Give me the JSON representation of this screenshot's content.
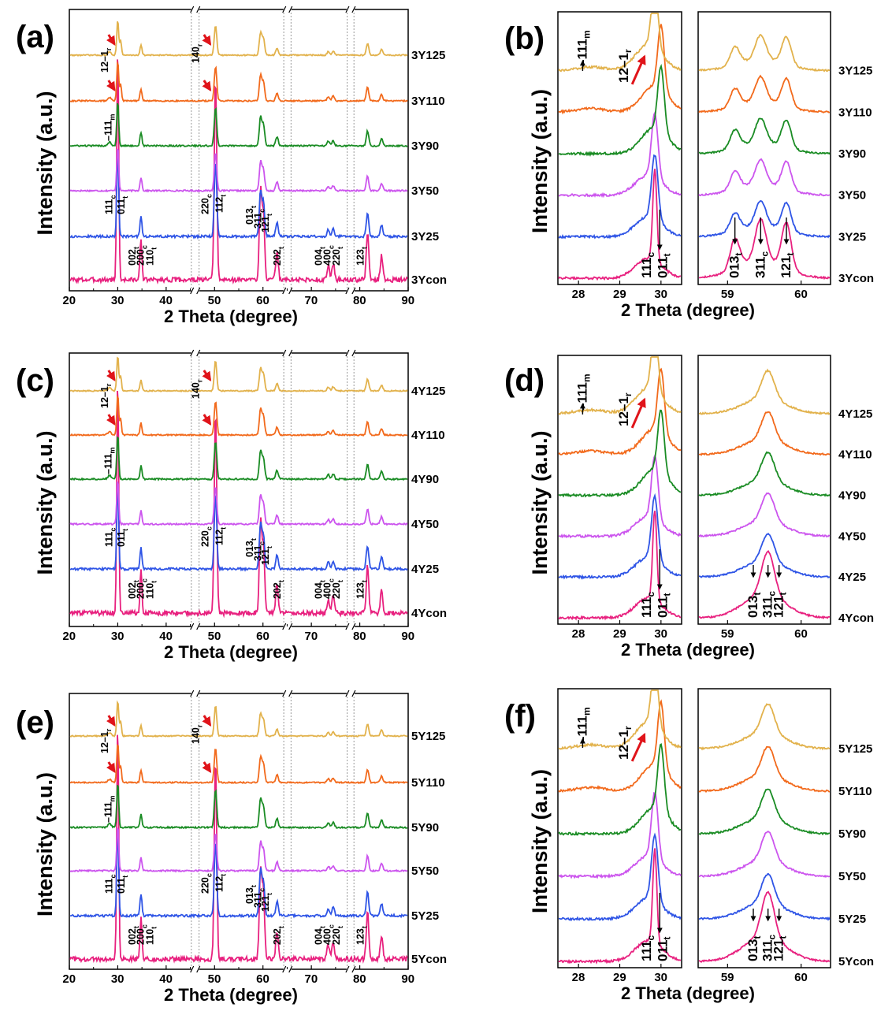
{
  "chart_data": [
    {
      "panel": "(a)",
      "type": "line",
      "series_type": "xrd-stacked",
      "xlabel": "2 Theta (degree)",
      "ylabel": "Intensity (a.u.)",
      "xlim": [
        20,
        90
      ],
      "xticks": [
        "20",
        "30",
        "40",
        "50",
        "60",
        "70",
        "80",
        "90"
      ],
      "axis_breaks": [
        [
          45,
          47
        ],
        [
          64,
          66
        ],
        [
          77,
          79
        ]
      ],
      "series": [
        "3Ycon",
        "3Y25",
        "3Y50",
        "3Y90",
        "3Y110",
        "3Y125"
      ],
      "colors": [
        "#e8217f",
        "#2f55e6",
        "#cc55ee",
        "#1a8c24",
        "#f26a1c",
        "#e2b24c"
      ],
      "peaks": [
        {
          "x": 30.0,
          "h": 1.0
        },
        {
          "x": 34.8,
          "h": 0.18
        },
        {
          "x": 50.2,
          "h": 0.85
        },
        {
          "x": 59.5,
          "h": 0.38
        },
        {
          "x": 60.1,
          "h": 0.28
        },
        {
          "x": 62.9,
          "h": 0.12
        },
        {
          "x": 73.5,
          "h": 0.06
        },
        {
          "x": 74.5,
          "h": 0.07
        },
        {
          "x": 81.6,
          "h": 0.2
        },
        {
          "x": 84.5,
          "h": 0.1
        }
      ],
      "annotations": [
        {
          "text": "111",
          "sub": "c"
        },
        {
          "text": "011",
          "sub": "t"
        },
        {
          "text": "002",
          "sub": "t"
        },
        {
          "text": "200",
          "sub": "c"
        },
        {
          "text": "110",
          "sub": "t"
        },
        {
          "text": "220",
          "sub": "c"
        },
        {
          "text": "112",
          "sub": "t"
        },
        {
          "text": "013",
          "sub": "t"
        },
        {
          "text": "311",
          "sub": "c"
        },
        {
          "text": "121",
          "sub": "t"
        },
        {
          "text": "202",
          "sub": "t"
        },
        {
          "text": "004",
          "sub": "t"
        },
        {
          "text": "400",
          "sub": "c"
        },
        {
          "text": "220",
          "sub": "t"
        },
        {
          "text": "123",
          "sub": "t"
        },
        {
          "text": "–111",
          "sub": "m"
        },
        {
          "text": "12–1",
          "sub": "r"
        },
        {
          "text": "140",
          "sub": "r"
        }
      ]
    },
    {
      "panel": "(b)",
      "type": "line",
      "series_type": "xrd-stacked-zoom",
      "xlabel": "2 Theta (degree)",
      "ylabel": "Intensity (a.u.)",
      "left_xlim": [
        27.5,
        30.5
      ],
      "left_xticks": [
        "28",
        "29",
        "30"
      ],
      "right_xlim": [
        58.6,
        60.4
      ],
      "right_xticks": [
        "59",
        "60"
      ],
      "series": [
        "3Ycon",
        "3Y25",
        "3Y50",
        "3Y90",
        "3Y110",
        "3Y125"
      ],
      "annotations": [
        {
          "text": "–111",
          "sub": "m"
        },
        {
          "text": "12–1",
          "sub": "r"
        },
        {
          "text": "111",
          "sub": "c"
        },
        {
          "text": "011",
          "sub": "t"
        },
        {
          "text": "013",
          "sub": "t"
        },
        {
          "text": "311",
          "sub": "c"
        },
        {
          "text": "121",
          "sub": "t"
        }
      ]
    },
    {
      "panel": "(c)",
      "type": "line",
      "series_type": "xrd-stacked",
      "xlabel": "2 Theta (degree)",
      "ylabel": "Intensity (a.u.)",
      "xlim": [
        20,
        90
      ],
      "xticks": [
        "20",
        "30",
        "40",
        "50",
        "60",
        "70",
        "80",
        "90"
      ],
      "series": [
        "4Ycon",
        "4Y25",
        "4Y50",
        "4Y90",
        "4Y110",
        "4Y125"
      ],
      "annotations": [
        {
          "text": "111",
          "sub": "c"
        },
        {
          "text": "011",
          "sub": "t"
        },
        {
          "text": "002",
          "sub": "t"
        },
        {
          "text": "200",
          "sub": "c"
        },
        {
          "text": "110",
          "sub": "t"
        },
        {
          "text": "220",
          "sub": "c"
        },
        {
          "text": "112",
          "sub": "t"
        },
        {
          "text": "013",
          "sub": "t"
        },
        {
          "text": "311",
          "sub": "c"
        },
        {
          "text": "121",
          "sub": "t"
        },
        {
          "text": "202",
          "sub": "t"
        },
        {
          "text": "004",
          "sub": "t"
        },
        {
          "text": "400",
          "sub": "c"
        },
        {
          "text": "220",
          "sub": "t"
        },
        {
          "text": "123",
          "sub": "t"
        },
        {
          "text": "–111",
          "sub": "m"
        },
        {
          "text": "12–1",
          "sub": "r"
        },
        {
          "text": "140",
          "sub": "r"
        }
      ]
    },
    {
      "panel": "(d)",
      "type": "line",
      "series_type": "xrd-stacked-zoom",
      "xlabel": "2 Theta (degree)",
      "ylabel": "Intensity (a.u.)",
      "left_xticks": [
        "28",
        "29",
        "30"
      ],
      "right_xticks": [
        "59",
        "60"
      ],
      "series": [
        "4Ycon",
        "4Y25",
        "4Y50",
        "4Y90",
        "4Y110",
        "4Y125"
      ],
      "annotations": [
        {
          "text": "–111",
          "sub": "m"
        },
        {
          "text": "12–1",
          "sub": "r"
        },
        {
          "text": "111",
          "sub": "c"
        },
        {
          "text": "011",
          "sub": "t"
        },
        {
          "text": "013",
          "sub": "t"
        },
        {
          "text": "311",
          "sub": "c"
        },
        {
          "text": "121",
          "sub": "t"
        }
      ]
    },
    {
      "panel": "(e)",
      "type": "line",
      "series_type": "xrd-stacked",
      "xlabel": "2 Theta (degree)",
      "ylabel": "Intensity (a.u.)",
      "xlim": [
        20,
        90
      ],
      "xticks": [
        "20",
        "30",
        "40",
        "50",
        "60",
        "70",
        "80",
        "90"
      ],
      "series": [
        "5Ycon",
        "5Y25",
        "5Y50",
        "5Y90",
        "5Y110",
        "5Y125"
      ],
      "annotations": [
        {
          "text": "111",
          "sub": "c"
        },
        {
          "text": "011",
          "sub": "t"
        },
        {
          "text": "002",
          "sub": "t"
        },
        {
          "text": "200",
          "sub": "c"
        },
        {
          "text": "110",
          "sub": "t"
        },
        {
          "text": "220",
          "sub": "c"
        },
        {
          "text": "112",
          "sub": "t"
        },
        {
          "text": "013",
          "sub": "t"
        },
        {
          "text": "311",
          "sub": "c"
        },
        {
          "text": "121",
          "sub": "t"
        },
        {
          "text": "202",
          "sub": "t"
        },
        {
          "text": "004",
          "sub": "t"
        },
        {
          "text": "400",
          "sub": "c"
        },
        {
          "text": "220",
          "sub": "t"
        },
        {
          "text": "123",
          "sub": "t"
        },
        {
          "text": "–111",
          "sub": "m"
        },
        {
          "text": "12–1",
          "sub": "r"
        },
        {
          "text": "140",
          "sub": "r"
        }
      ]
    },
    {
      "panel": "(f)",
      "type": "line",
      "series_type": "xrd-stacked-zoom",
      "xlabel": "2 Theta (degree)",
      "ylabel": "Intensity (a.u.)",
      "left_xticks": [
        "28",
        "29",
        "30"
      ],
      "right_xticks": [
        "59",
        "60"
      ],
      "series": [
        "5Ycon",
        "5Y25",
        "5Y50",
        "5Y90",
        "5Y110",
        "5Y125"
      ],
      "annotations": [
        {
          "text": "–111",
          "sub": "m"
        },
        {
          "text": "12–1",
          "sub": "r"
        },
        {
          "text": "111",
          "sub": "c"
        },
        {
          "text": "011",
          "sub": "t"
        },
        {
          "text": "013",
          "sub": "t"
        },
        {
          "text": "311",
          "sub": "c"
        },
        {
          "text": "121",
          "sub": "t"
        }
      ]
    }
  ]
}
